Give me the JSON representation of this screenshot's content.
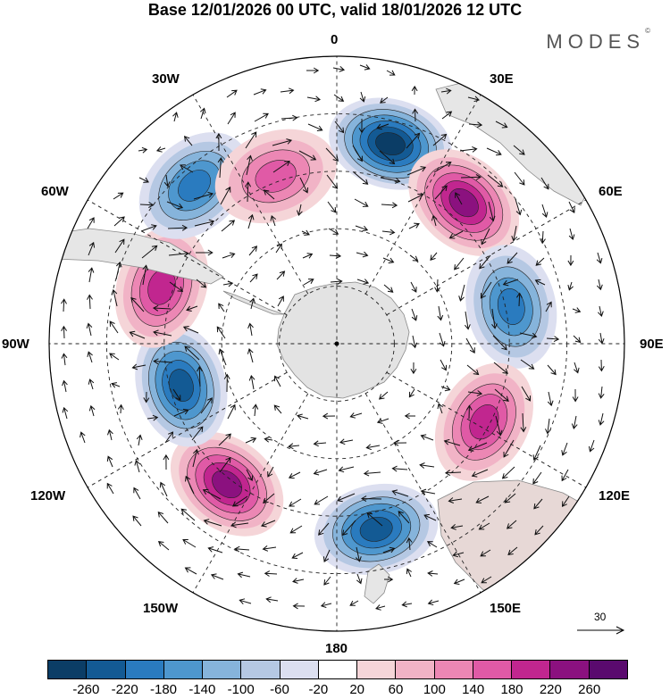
{
  "title": "Base 12/01/2026 00 UTC, valid 18/01/2026 12 UTC",
  "brand": "MODES",
  "brand_mark": "©",
  "longitude_labels": [
    "0",
    "30E",
    "60E",
    "90E",
    "120E",
    "150E",
    "180",
    "150W",
    "120W",
    "90W",
    "60W",
    "30W"
  ],
  "reference_vector_label": "30",
  "colorbar": {
    "tick_labels": [
      "-260",
      "-220",
      "-180",
      "-140",
      "-100",
      "-60",
      "-20",
      "20",
      "60",
      "100",
      "140",
      "180",
      "220",
      "260"
    ],
    "colors": [
      "#0b3d66",
      "#135a94",
      "#2a7bbf",
      "#4e97ce",
      "#86b4db",
      "#b5c8e3",
      "#dcdff0",
      "#ffffff",
      "#f5d5d8",
      "#f1b3c6",
      "#ec87b4",
      "#e05aa6",
      "#c1268f",
      "#8b117f",
      "#5a0a6e"
    ]
  },
  "anomaly_centers": [
    {
      "lon": 15,
      "r": 0.72,
      "value": -260
    },
    {
      "lon": 42,
      "r": 0.66,
      "value": 250
    },
    {
      "lon": 78,
      "r": 0.62,
      "value": -200
    },
    {
      "lon": 118,
      "r": 0.58,
      "value": 200
    },
    {
      "lon": 168,
      "r": 0.66,
      "value": -220
    },
    {
      "lon": 218,
      "r": 0.62,
      "value": 220
    },
    {
      "lon": 255,
      "r": 0.56,
      "value": -220
    },
    {
      "lon": 288,
      "r": 0.64,
      "value": 180
    },
    {
      "lon": 318,
      "r": 0.74,
      "value": -200
    },
    {
      "lon": 340,
      "r": 0.62,
      "value": 140
    }
  ]
}
